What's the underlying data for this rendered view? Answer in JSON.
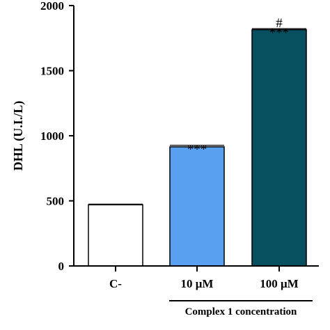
{
  "chart_data": {
    "type": "bar",
    "title": "",
    "xlabel": "",
    "ylabel": "DHL (U.I./L)",
    "ylim": [
      0,
      2000
    ],
    "yticks": [
      0,
      500,
      1000,
      1500,
      2000
    ],
    "categories": [
      "C-",
      "10 μM",
      "100 μM"
    ],
    "values": [
      470,
      915,
      1815
    ],
    "errors": [
      5,
      12,
      8
    ],
    "bar_colors": [
      "#ffffff",
      "#5aa0f0",
      "#07505f"
    ],
    "significance": [
      {
        "category_index": 1,
        "labels": [
          "***"
        ]
      },
      {
        "category_index": 2,
        "labels": [
          "#",
          "***"
        ]
      }
    ],
    "group_label": {
      "text": "Complex 1 concentration",
      "category_indices": [
        1,
        2
      ]
    },
    "grid": false,
    "legend": "none"
  }
}
